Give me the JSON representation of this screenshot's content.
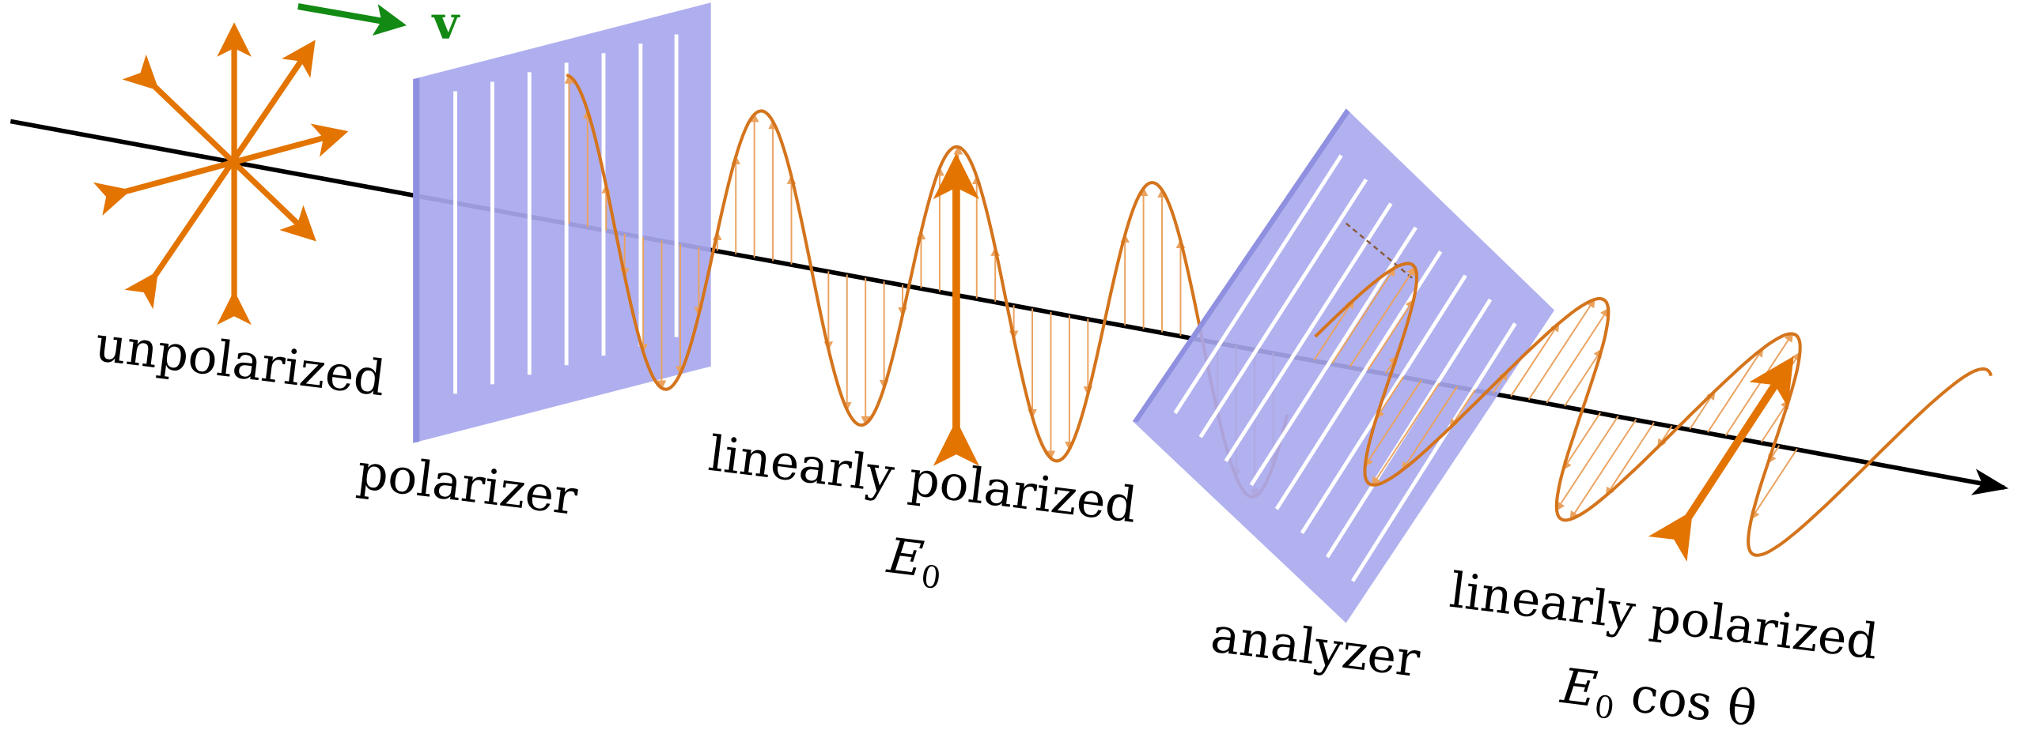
{
  "labels": {
    "velocity": "v",
    "unpolarized": "unpolarized",
    "polarizer": "polarizer",
    "linear1": "linearly polarized",
    "amp1_symbol": "E",
    "amp1_sub": "0",
    "analyzer": "analyzer",
    "linear2": "linearly polarized",
    "amp2_symbol": "E",
    "amp2_sub": "0",
    "amp2_rest": " cos θ"
  },
  "colors": {
    "field_arrow": "#e37400",
    "wave": "#d4741c",
    "hatch": "#eaa25e",
    "filter": "#a8a8ee",
    "filter_edge": "#9494e4",
    "velocity": "#138a13",
    "axis": "#000000"
  },
  "filters": {
    "polarizer_orientation": "vertical",
    "analyzer_orientation": "tilted"
  }
}
